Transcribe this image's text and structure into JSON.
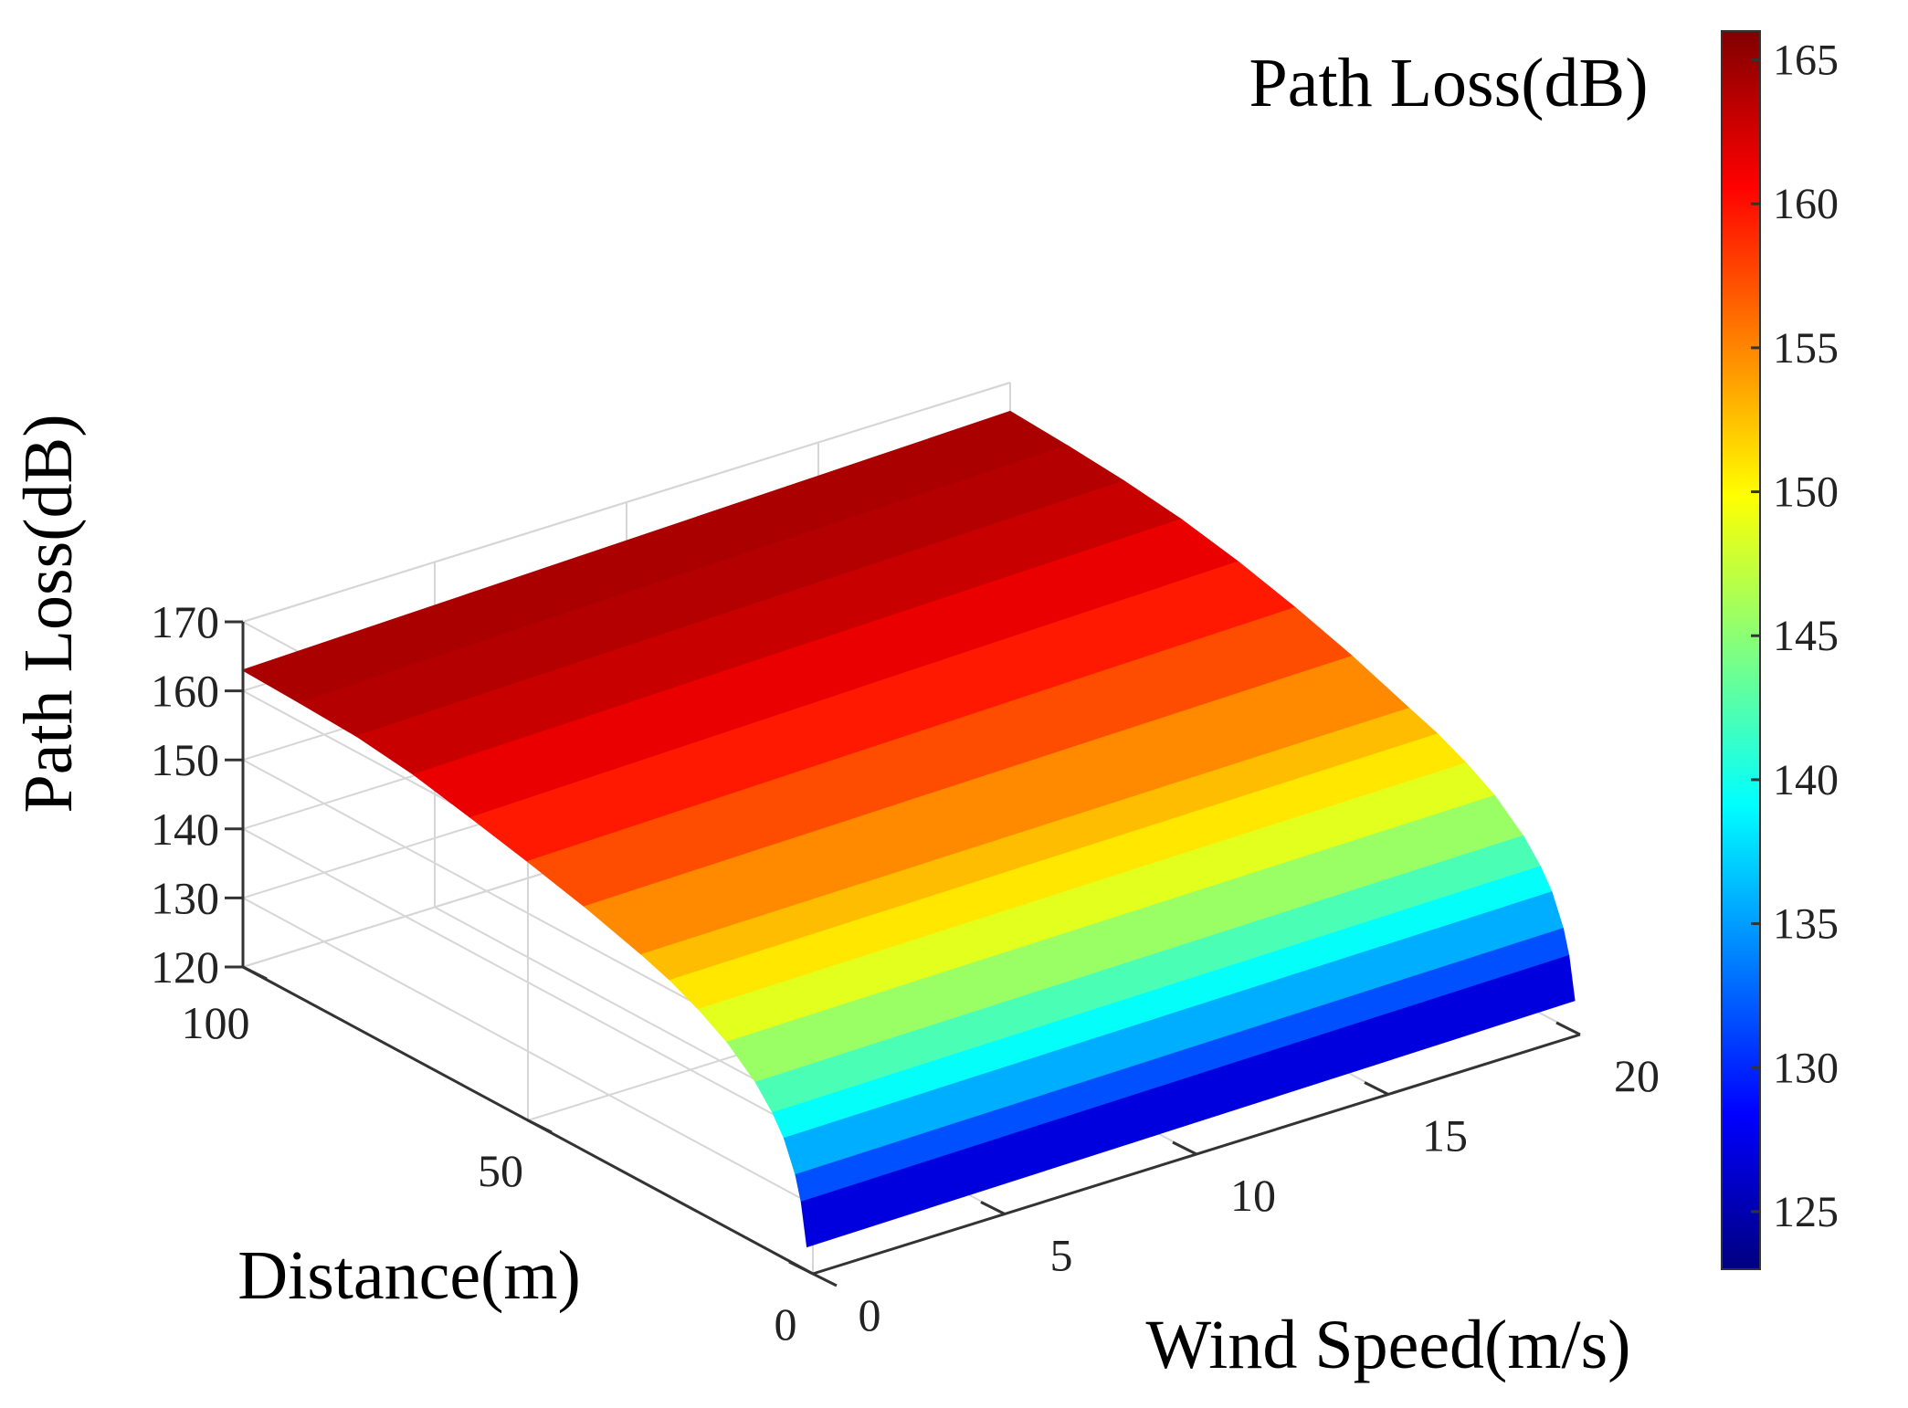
{
  "chart_data": {
    "type": "surface",
    "title": "",
    "xlabel": "Wind Speed(m/s)",
    "ylabel": "Distance(m)",
    "zlabel": "Path Loss(dB)",
    "colorbar_label": "Path Loss(dB)",
    "colormap": "jet",
    "xlim": [
      0,
      20
    ],
    "ylim": [
      0,
      100
    ],
    "zlim": [
      120,
      170
    ],
    "clim": [
      123,
      166
    ],
    "xticks": [
      "0",
      "5",
      "10",
      "15",
      "20"
    ],
    "yticks": [
      "0",
      "50",
      "100"
    ],
    "zticks": [
      "120",
      "130",
      "140",
      "150",
      "160",
      "170"
    ],
    "colorbar_ticks": [
      "125",
      "130",
      "135",
      "140",
      "145",
      "150",
      "155",
      "160",
      "165"
    ],
    "grid": true,
    "distance": [
      1,
      2,
      3,
      5,
      7,
      10,
      15,
      20,
      25,
      30,
      40,
      50,
      60,
      70,
      80,
      90,
      100
    ],
    "wind_speed": [
      0,
      5,
      10,
      15,
      20
    ],
    "path_loss_at_wind_0": [
      123.5,
      129.5,
      133.0,
      137.4,
      140.2,
      143.3,
      146.9,
      149.4,
      151.4,
      152.9,
      155.4,
      157.5,
      159.4,
      161.2,
      162.3,
      162.7,
      163.0
    ],
    "path_loss_at_wind_20": [
      124.5,
      130.5,
      134.0,
      138.4,
      141.2,
      144.3,
      147.9,
      150.4,
      152.4,
      153.9,
      157.0,
      159.6,
      161.8,
      163.5,
      164.6,
      165.3,
      165.8
    ],
    "colors": {
      "grid": "#d6d6d6",
      "axis": "#333333",
      "text": "#000000"
    }
  }
}
